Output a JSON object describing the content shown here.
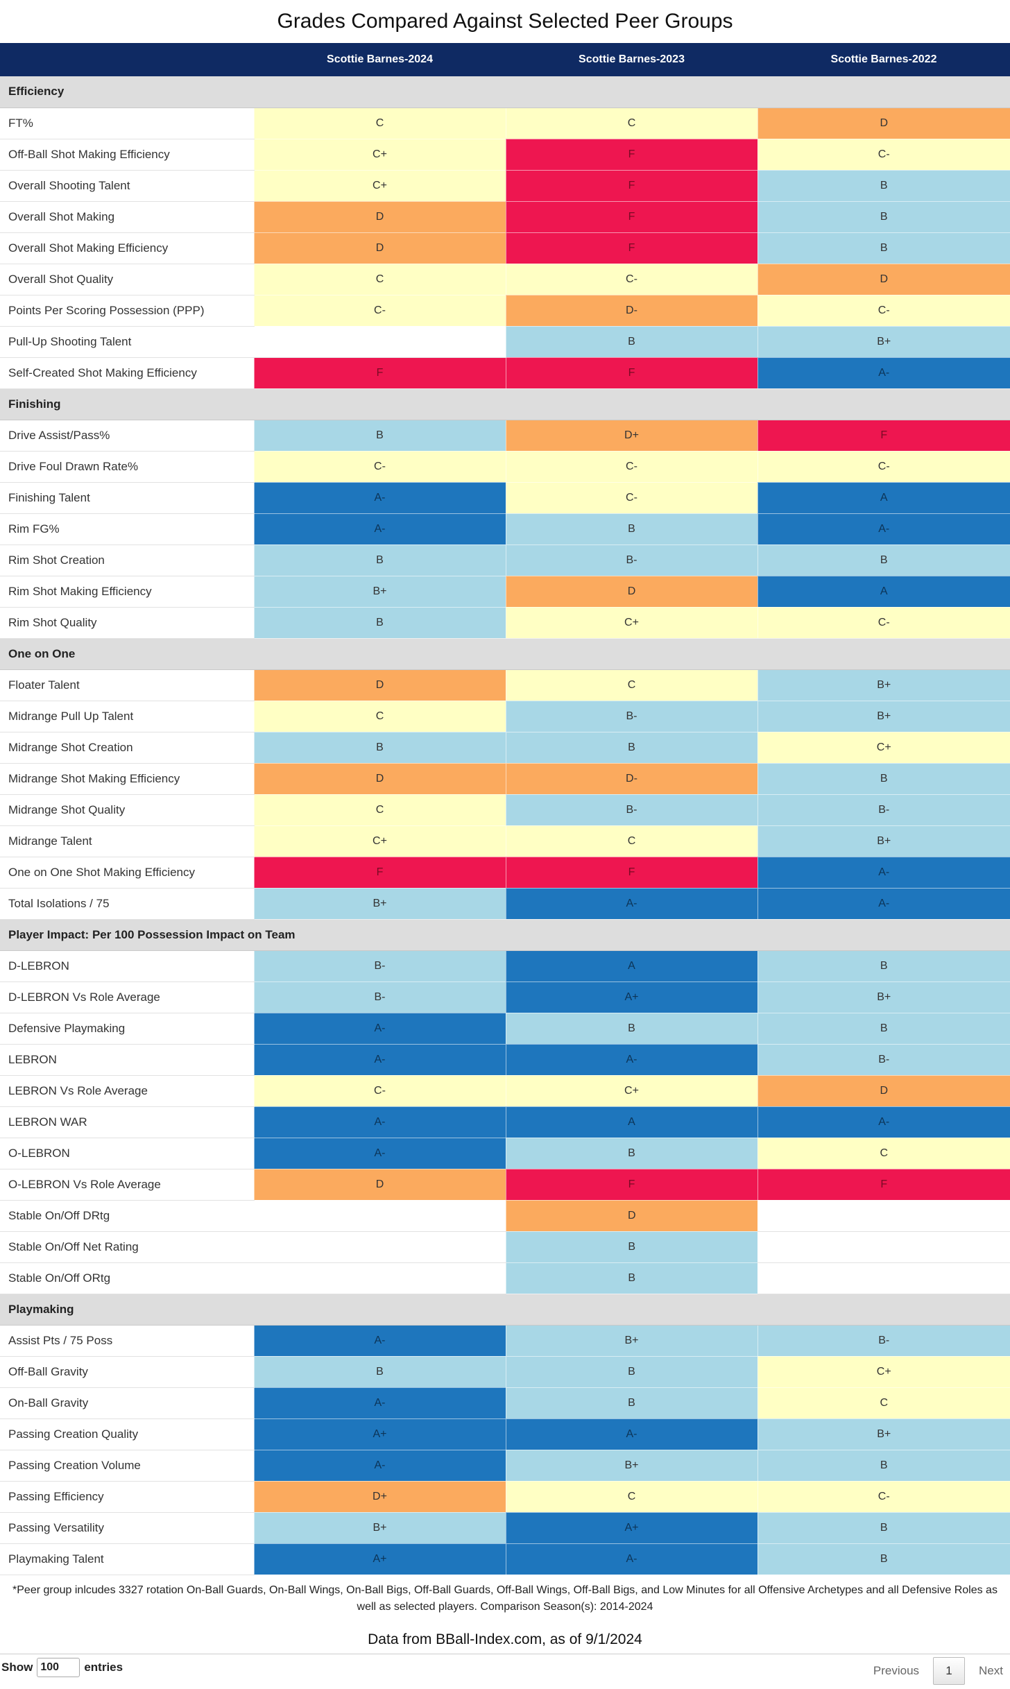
{
  "title": "Grades Compared Against Selected Peer Groups",
  "columns": [
    "",
    "Scottie Barnes-2024",
    "Scottie Barnes-2023",
    "Scottie Barnes-2022"
  ],
  "grade_colors": {
    "none": "#ffffff",
    "yellow": "#ffffc4",
    "orange": "#fbaa5e",
    "red": "#ee1650",
    "lightblue": "#a8d7e6",
    "darkblue": "#1e76bd"
  },
  "header_color": "#0f2a63",
  "sections": [
    {
      "name": "Efficiency",
      "rows": [
        {
          "metric": "FT%",
          "grades": [
            "C",
            "C",
            "D"
          ],
          "colors": [
            "yellow",
            "yellow",
            "orange"
          ]
        },
        {
          "metric": "Off-Ball Shot Making Efficiency",
          "grades": [
            "C+",
            "F",
            "C-"
          ],
          "colors": [
            "yellow",
            "red",
            "yellow"
          ]
        },
        {
          "metric": "Overall Shooting Talent",
          "grades": [
            "C+",
            "F",
            "B"
          ],
          "colors": [
            "yellow",
            "red",
            "lightblue"
          ]
        },
        {
          "metric": "Overall Shot Making",
          "grades": [
            "D",
            "F",
            "B"
          ],
          "colors": [
            "orange",
            "red",
            "lightblue"
          ]
        },
        {
          "metric": "Overall Shot Making Efficiency",
          "grades": [
            "D",
            "F",
            "B"
          ],
          "colors": [
            "orange",
            "red",
            "lightblue"
          ]
        },
        {
          "metric": "Overall Shot Quality",
          "grades": [
            "C",
            "C-",
            "D"
          ],
          "colors": [
            "yellow",
            "yellow",
            "orange"
          ]
        },
        {
          "metric": "Points Per Scoring Possession (PPP)",
          "grades": [
            "C-",
            "D-",
            "C-"
          ],
          "colors": [
            "yellow",
            "orange",
            "yellow"
          ]
        },
        {
          "metric": "Pull-Up Shooting Talent",
          "grades": [
            "",
            "B",
            "B+"
          ],
          "colors": [
            "none",
            "lightblue",
            "lightblue"
          ]
        },
        {
          "metric": "Self-Created Shot Making Efficiency",
          "grades": [
            "F",
            "F",
            "A-"
          ],
          "colors": [
            "red",
            "red",
            "darkblue"
          ]
        }
      ]
    },
    {
      "name": "Finishing",
      "rows": [
        {
          "metric": "Drive Assist/Pass%",
          "grades": [
            "B",
            "D+",
            "F"
          ],
          "colors": [
            "lightblue",
            "orange",
            "red"
          ]
        },
        {
          "metric": "Drive Foul Drawn Rate%",
          "grades": [
            "C-",
            "C-",
            "C-"
          ],
          "colors": [
            "yellow",
            "yellow",
            "yellow"
          ]
        },
        {
          "metric": "Finishing Talent",
          "grades": [
            "A-",
            "C-",
            "A"
          ],
          "colors": [
            "darkblue",
            "yellow",
            "darkblue"
          ]
        },
        {
          "metric": "Rim FG%",
          "grades": [
            "A-",
            "B",
            "A-"
          ],
          "colors": [
            "darkblue",
            "lightblue",
            "darkblue"
          ]
        },
        {
          "metric": "Rim Shot Creation",
          "grades": [
            "B",
            "B-",
            "B"
          ],
          "colors": [
            "lightblue",
            "lightblue",
            "lightblue"
          ]
        },
        {
          "metric": "Rim Shot Making Efficiency",
          "grades": [
            "B+",
            "D",
            "A"
          ],
          "colors": [
            "lightblue",
            "orange",
            "darkblue"
          ]
        },
        {
          "metric": "Rim Shot Quality",
          "grades": [
            "B",
            "C+",
            "C-"
          ],
          "colors": [
            "lightblue",
            "yellow",
            "yellow"
          ]
        }
      ]
    },
    {
      "name": "One on One",
      "rows": [
        {
          "metric": "Floater Talent",
          "grades": [
            "D",
            "C",
            "B+"
          ],
          "colors": [
            "orange",
            "yellow",
            "lightblue"
          ]
        },
        {
          "metric": "Midrange Pull Up Talent",
          "grades": [
            "C",
            "B-",
            "B+"
          ],
          "colors": [
            "yellow",
            "lightblue",
            "lightblue"
          ]
        },
        {
          "metric": "Midrange Shot Creation",
          "grades": [
            "B",
            "B",
            "C+"
          ],
          "colors": [
            "lightblue",
            "lightblue",
            "yellow"
          ]
        },
        {
          "metric": "Midrange Shot Making Efficiency",
          "grades": [
            "D",
            "D-",
            "B"
          ],
          "colors": [
            "orange",
            "orange",
            "lightblue"
          ]
        },
        {
          "metric": "Midrange Shot Quality",
          "grades": [
            "C",
            "B-",
            "B-"
          ],
          "colors": [
            "yellow",
            "lightblue",
            "lightblue"
          ]
        },
        {
          "metric": "Midrange Talent",
          "grades": [
            "C+",
            "C",
            "B+"
          ],
          "colors": [
            "yellow",
            "yellow",
            "lightblue"
          ]
        },
        {
          "metric": "One on One Shot Making Efficiency",
          "grades": [
            "F",
            "F",
            "A-"
          ],
          "colors": [
            "red",
            "red",
            "darkblue"
          ]
        },
        {
          "metric": "Total Isolations / 75",
          "grades": [
            "B+",
            "A-",
            "A-"
          ],
          "colors": [
            "lightblue",
            "darkblue",
            "darkblue"
          ]
        }
      ]
    },
    {
      "name": "Player Impact: Per 100 Possession Impact on Team",
      "rows": [
        {
          "metric": "D-LEBRON",
          "grades": [
            "B-",
            "A",
            "B"
          ],
          "colors": [
            "lightblue",
            "darkblue",
            "lightblue"
          ]
        },
        {
          "metric": "D-LEBRON Vs Role Average",
          "grades": [
            "B-",
            "A+",
            "B+"
          ],
          "colors": [
            "lightblue",
            "darkblue",
            "lightblue"
          ]
        },
        {
          "metric": "Defensive Playmaking",
          "grades": [
            "A-",
            "B",
            "B"
          ],
          "colors": [
            "darkblue",
            "lightblue",
            "lightblue"
          ]
        },
        {
          "metric": "LEBRON",
          "grades": [
            "A-",
            "A-",
            "B-"
          ],
          "colors": [
            "darkblue",
            "darkblue",
            "lightblue"
          ]
        },
        {
          "metric": "LEBRON Vs Role Average",
          "grades": [
            "C-",
            "C+",
            "D"
          ],
          "colors": [
            "yellow",
            "yellow",
            "orange"
          ]
        },
        {
          "metric": "LEBRON WAR",
          "grades": [
            "A-",
            "A",
            "A-"
          ],
          "colors": [
            "darkblue",
            "darkblue",
            "darkblue"
          ]
        },
        {
          "metric": "O-LEBRON",
          "grades": [
            "A-",
            "B",
            "C"
          ],
          "colors": [
            "darkblue",
            "lightblue",
            "yellow"
          ]
        },
        {
          "metric": "O-LEBRON Vs Role Average",
          "grades": [
            "D",
            "F",
            "F"
          ],
          "colors": [
            "orange",
            "red",
            "red"
          ]
        },
        {
          "metric": "Stable On/Off DRtg",
          "grades": [
            "",
            "D",
            ""
          ],
          "colors": [
            "none",
            "orange",
            "none"
          ]
        },
        {
          "metric": "Stable On/Off Net Rating",
          "grades": [
            "",
            "B",
            ""
          ],
          "colors": [
            "none",
            "lightblue",
            "none"
          ]
        },
        {
          "metric": "Stable On/Off ORtg",
          "grades": [
            "",
            "B",
            ""
          ],
          "colors": [
            "none",
            "lightblue",
            "none"
          ]
        }
      ]
    },
    {
      "name": "Playmaking",
      "rows": [
        {
          "metric": "Assist Pts / 75 Poss",
          "grades": [
            "A-",
            "B+",
            "B-"
          ],
          "colors": [
            "darkblue",
            "lightblue",
            "lightblue"
          ]
        },
        {
          "metric": "Off-Ball Gravity",
          "grades": [
            "B",
            "B",
            "C+"
          ],
          "colors": [
            "lightblue",
            "lightblue",
            "yellow"
          ]
        },
        {
          "metric": "On-Ball Gravity",
          "grades": [
            "A-",
            "B",
            "C"
          ],
          "colors": [
            "darkblue",
            "lightblue",
            "yellow"
          ]
        },
        {
          "metric": "Passing Creation Quality",
          "grades": [
            "A+",
            "A-",
            "B+"
          ],
          "colors": [
            "darkblue",
            "darkblue",
            "lightblue"
          ]
        },
        {
          "metric": "Passing Creation Volume",
          "grades": [
            "A-",
            "B+",
            "B"
          ],
          "colors": [
            "darkblue",
            "lightblue",
            "lightblue"
          ]
        },
        {
          "metric": "Passing Efficiency",
          "grades": [
            "D+",
            "C",
            "C-"
          ],
          "colors": [
            "orange",
            "yellow",
            "yellow"
          ]
        },
        {
          "metric": "Passing Versatility",
          "grades": [
            "B+",
            "A+",
            "B"
          ],
          "colors": [
            "lightblue",
            "darkblue",
            "lightblue"
          ]
        },
        {
          "metric": "Playmaking Talent",
          "grades": [
            "A+",
            "A-",
            "B"
          ],
          "colors": [
            "darkblue",
            "darkblue",
            "lightblue"
          ]
        }
      ]
    }
  ],
  "footnote": "*Peer group inlcudes 3327 rotation On-Ball Guards, On-Ball Wings, On-Ball Bigs, Off-Ball Guards, Off-Ball Wings, Off-Ball Bigs, and Low Minutes for all Offensive Archetypes and all Defensive Roles as well as selected players. Comparison Season(s): 2014-2024",
  "source": "Data from BBall-Index.com, as of 9/1/2024",
  "length_control": {
    "show_label": "Show",
    "value": "100",
    "entries_label": "entries"
  },
  "pagination": {
    "previous": "Previous",
    "current_page": "1",
    "next": "Next"
  }
}
